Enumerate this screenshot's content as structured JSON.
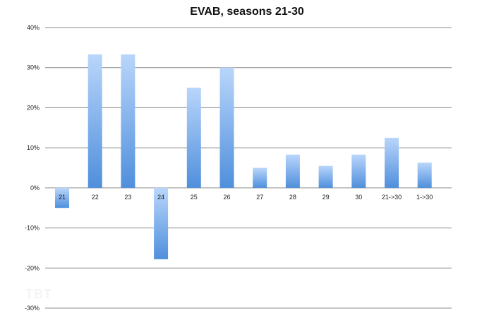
{
  "chart_data": {
    "type": "bar",
    "title": "EVAB, seasons 21-30",
    "xlabel": "",
    "ylabel": "",
    "categories": [
      "21",
      "22",
      "23",
      "24",
      "25",
      "26",
      "27",
      "28",
      "29",
      "30",
      "21->30",
      "1->30"
    ],
    "values": [
      -5,
      33.3,
      33.3,
      -17.8,
      25,
      30,
      5,
      8.3,
      5.5,
      8.3,
      12.5,
      6.3
    ],
    "ylim": [
      -30,
      40
    ],
    "yticks": [
      40,
      30,
      20,
      10,
      0,
      -10,
      -20,
      -30
    ],
    "ytick_labels": [
      "40%",
      "30%",
      "20%",
      "10%",
      "0%",
      "-10%",
      "-20%",
      "-30%"
    ],
    "grid": true,
    "legend": "none",
    "bar_color_top": "#b9d6fb",
    "bar_color_bottom": "#4f8fdc"
  },
  "watermark": "TBT"
}
